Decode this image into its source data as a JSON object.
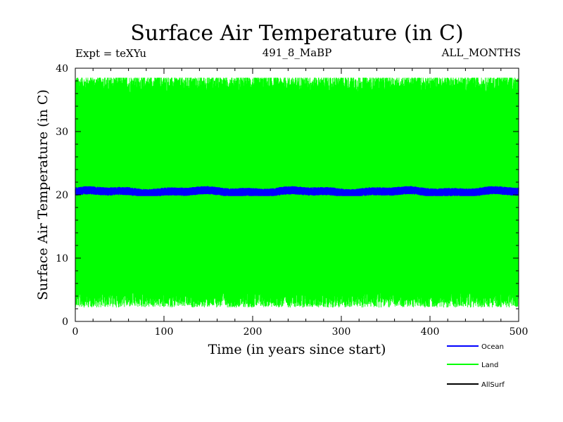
{
  "chart_data": {
    "type": "line",
    "title": "Surface Air Temperature (in C)",
    "subtitle_left": "Expt = teXYu",
    "subtitle_center": "491_8_MaBP",
    "subtitle_right": "ALL_MONTHS",
    "xlabel": "Time (in years since start)",
    "ylabel": "Surface Air Temperature (in C)",
    "xlim": [
      0,
      500
    ],
    "ylim": [
      0,
      40
    ],
    "xticks": [
      0,
      100,
      200,
      300,
      400,
      500
    ],
    "yticks": [
      0,
      10,
      20,
      30,
      40
    ],
    "grid": false,
    "legend_position": "bottom-right",
    "series": [
      {
        "name": "Ocean",
        "color": "#0000ff",
        "mean": 20.5,
        "amplitude": 0.6,
        "range": [
          19.8,
          21.5
        ]
      },
      {
        "name": "Land",
        "color": "#00ff00",
        "mean": 20.5,
        "amplitude": 17,
        "range": [
          2,
          38.5
        ]
      },
      {
        "name": "AllSurf",
        "color": "#000000"
      }
    ]
  }
}
